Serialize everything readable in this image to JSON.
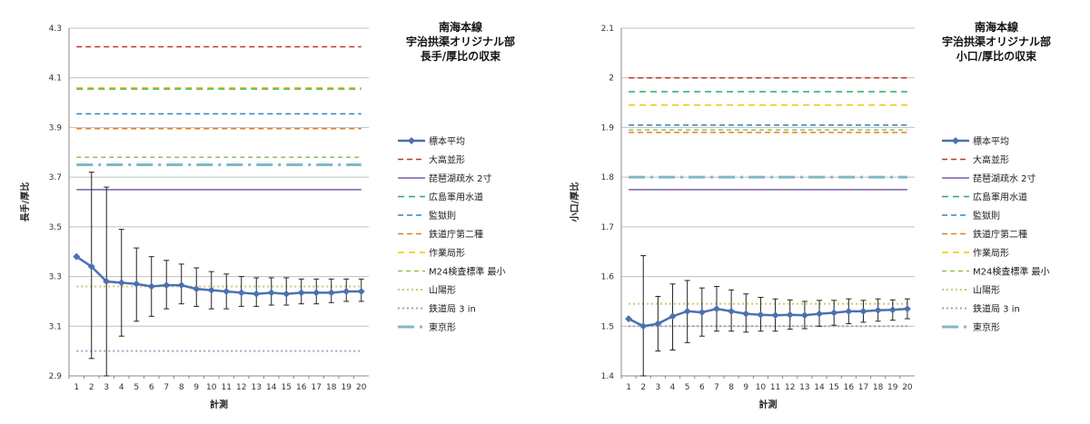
{
  "chart_data": [
    {
      "type": "line",
      "title": [
        "南海本線",
        "宇治拱渠オリジナル部",
        "長手/厚比の収束"
      ],
      "xlabel": "計測",
      "ylabel": "長手/厚比",
      "x": [
        1,
        2,
        3,
        4,
        5,
        6,
        7,
        8,
        9,
        10,
        11,
        12,
        13,
        14,
        15,
        16,
        17,
        18,
        19,
        20
      ],
      "ylim": [
        2.9,
        4.3
      ],
      "yticks": [
        "2.9",
        "3.1",
        "3.3",
        "3.5",
        "3.7",
        "3.9",
        "4.1",
        "4.3"
      ],
      "grid": true,
      "legend_position": "right",
      "sample": {
        "name": "標本平均",
        "color": "#4a72b0",
        "values": [
          3.38,
          3.34,
          3.28,
          3.275,
          3.27,
          3.26,
          3.265,
          3.265,
          3.25,
          3.245,
          3.24,
          3.235,
          3.23,
          3.235,
          3.23,
          3.235,
          3.235,
          3.235,
          3.24,
          3.24
        ],
        "err_low": [
          null,
          2.97,
          2.9,
          3.06,
          3.12,
          3.14,
          3.17,
          3.19,
          3.18,
          3.17,
          3.17,
          3.18,
          3.18,
          3.185,
          3.185,
          3.19,
          3.19,
          3.195,
          3.2,
          3.2
        ],
        "err_high": [
          null,
          3.72,
          3.66,
          3.49,
          3.415,
          3.38,
          3.365,
          3.35,
          3.335,
          3.32,
          3.31,
          3.3,
          3.295,
          3.295,
          3.295,
          3.29,
          3.29,
          3.29,
          3.29,
          3.29
        ]
      },
      "references": [
        {
          "name": "大高並形",
          "value": 4.225,
          "color": "#c0392b",
          "dash": "6,4",
          "width": 1.5
        },
        {
          "name": "琵琶湖疏水 2寸",
          "value": 3.65,
          "color": "#7c5ba6",
          "dash": "",
          "width": 1.5
        },
        {
          "name": "広島軍用水道",
          "value": 4.055,
          "color": "#27ae60",
          "dash": "7,5",
          "width": 1.5
        },
        {
          "name": "監獄則",
          "value": 3.955,
          "color": "#2e86c1",
          "dash": "6,4",
          "width": 1.5
        },
        {
          "name": "鉄道庁第二種",
          "value": 3.895,
          "color": "#e67e22",
          "dash": "6,4",
          "width": 1.5
        },
        {
          "name": "作業局形",
          "value": 4.06,
          "color": "#f1c40f",
          "dash": "7,5",
          "width": 1.5
        },
        {
          "name": "M24検査標準 最小",
          "value": 3.78,
          "color": "#8bc34a",
          "dash": "5,4",
          "width": 1.5
        },
        {
          "name": "山陽形",
          "value": 3.26,
          "color": "#d4c27a",
          "dash": "2,3",
          "width": 2
        },
        {
          "name": "鉄道局 3 in",
          "value": 3.0,
          "color": "#a0a0c8",
          "dash": "2,3",
          "width": 2
        },
        {
          "name": "東京形",
          "value": 3.75,
          "color": "#7fb8c8",
          "dash": "18,6,3,6",
          "width": 3
        }
      ]
    },
    {
      "type": "line",
      "title": [
        "南海本線",
        "宇治拱渠オリジナル部",
        "小口/厚比の収束"
      ],
      "xlabel": "計測",
      "ylabel": "小口/厚比",
      "x": [
        1,
        2,
        3,
        4,
        5,
        6,
        7,
        8,
        9,
        10,
        11,
        12,
        13,
        14,
        15,
        16,
        17,
        18,
        19,
        20
      ],
      "ylim": [
        1.4,
        2.1
      ],
      "yticks": [
        "1.4",
        "1.5",
        "1.6",
        "1.7",
        "1.8",
        "1.9",
        "2",
        "2.1"
      ],
      "grid": true,
      "legend_position": "right",
      "sample": {
        "name": "標本平均",
        "color": "#4a72b0",
        "values": [
          1.515,
          1.5,
          1.505,
          1.52,
          1.53,
          1.528,
          1.535,
          1.53,
          1.525,
          1.523,
          1.522,
          1.523,
          1.522,
          1.525,
          1.527,
          1.53,
          1.53,
          1.532,
          1.533,
          1.535
        ],
        "err_low": [
          null,
          1.4,
          1.45,
          1.452,
          1.467,
          1.48,
          1.49,
          1.49,
          1.488,
          1.49,
          1.49,
          1.494,
          1.495,
          1.5,
          1.502,
          1.505,
          1.508,
          1.51,
          1.512,
          1.515
        ],
        "err_high": [
          null,
          1.642,
          1.56,
          1.585,
          1.592,
          1.577,
          1.58,
          1.573,
          1.565,
          1.558,
          1.555,
          1.553,
          1.55,
          1.552,
          1.552,
          1.555,
          1.552,
          1.555,
          1.553,
          1.555
        ]
      },
      "references": [
        {
          "name": "大高並形",
          "value": 2.0,
          "color": "#c0392b",
          "dash": "6,4",
          "width": 1.5
        },
        {
          "name": "琵琶湖疏水 2寸",
          "value": 1.775,
          "color": "#7c5ba6",
          "dash": "",
          "width": 1.5
        },
        {
          "name": "広島軍用水道",
          "value": 1.972,
          "color": "#27ae60",
          "dash": "7,5",
          "width": 1.5
        },
        {
          "name": "監獄則",
          "value": 1.905,
          "color": "#2e86c1",
          "dash": "6,4",
          "width": 1.5
        },
        {
          "name": "鉄道庁第二種",
          "value": 1.89,
          "color": "#e67e22",
          "dash": "6,4",
          "width": 1.5
        },
        {
          "name": "作業局形",
          "value": 1.945,
          "color": "#f1c40f",
          "dash": "7,5",
          "width": 1.5
        },
        {
          "name": "M24検査標準 最小",
          "value": 1.895,
          "color": "#8bc34a",
          "dash": "5,4",
          "width": 1.5
        },
        {
          "name": "山陽形",
          "value": 1.545,
          "color": "#d4c27a",
          "dash": "2,3",
          "width": 2
        },
        {
          "name": "鉄道局 3 in",
          "value": 1.5,
          "color": "#a0a0c8",
          "dash": "2,3",
          "width": 2
        },
        {
          "name": "東京形",
          "value": 1.8,
          "color": "#7fb8c8",
          "dash": "18,6,3,6",
          "width": 3
        }
      ]
    }
  ]
}
